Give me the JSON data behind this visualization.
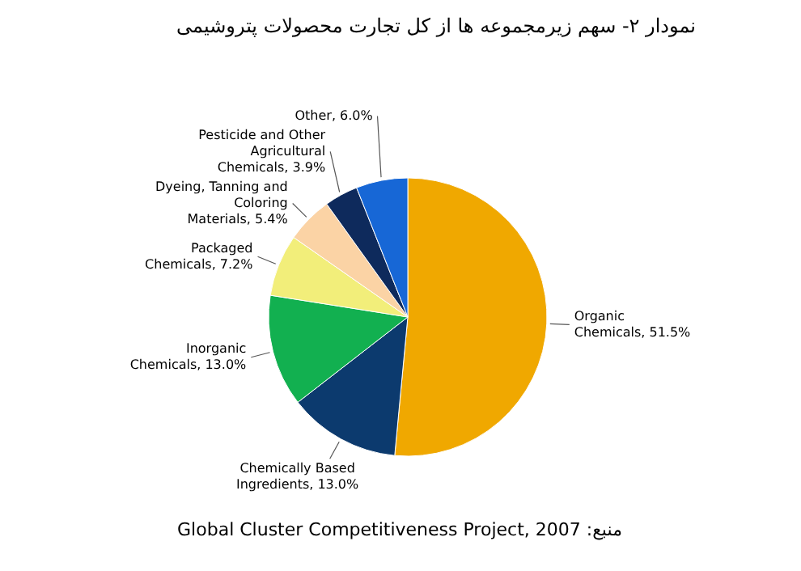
{
  "chart_data": {
    "type": "pie",
    "title": "نمودار ۲- سهم زیرمجموعه ها از کل تجارت محصولات پتروشیمی",
    "categories": [
      "Organic Chemicals",
      "Chemically Based Ingredients",
      "Inorganic Chemicals",
      "Packaged Chemicals",
      "Dyeing, Tanning and Coloring Materials",
      "Pesticide and Other Agricultural Chemicals",
      "Other"
    ],
    "values": [
      51.5,
      13.0,
      13.0,
      7.2,
      5.4,
      3.9,
      6.0
    ],
    "value_labels": [
      "51.5%",
      "13.0%",
      "13.0%",
      "7.2%",
      "5.4%",
      "3.9%",
      "6.0%"
    ],
    "colors": [
      "#f0a800",
      "#0c3a6e",
      "#12b050",
      "#f2ee7a",
      "#fbd3a5",
      "#0e2a5c",
      "#1767d6"
    ],
    "annotations": [
      "منبع: Global Cluster Competitiveness Project, 2007"
    ]
  }
}
